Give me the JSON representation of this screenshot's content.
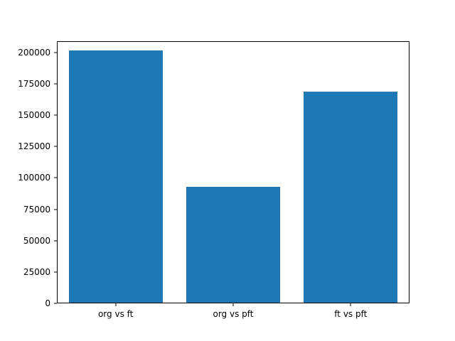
{
  "figure": {
    "background": "#ffffff"
  },
  "chart_data": {
    "type": "bar",
    "categories": [
      "org vs ft",
      "org vs pft",
      "ft vs pft"
    ],
    "values": [
      202000,
      93000,
      169000
    ],
    "title": "",
    "xlabel": "",
    "ylabel": "",
    "ylim": [
      0,
      209000
    ],
    "yticks": [
      0,
      25000,
      50000,
      75000,
      100000,
      125000,
      150000,
      175000,
      200000
    ],
    "bar_color": "#1f77b4",
    "bar_width_fraction": 0.8,
    "grid": false,
    "legend_position": "none"
  }
}
